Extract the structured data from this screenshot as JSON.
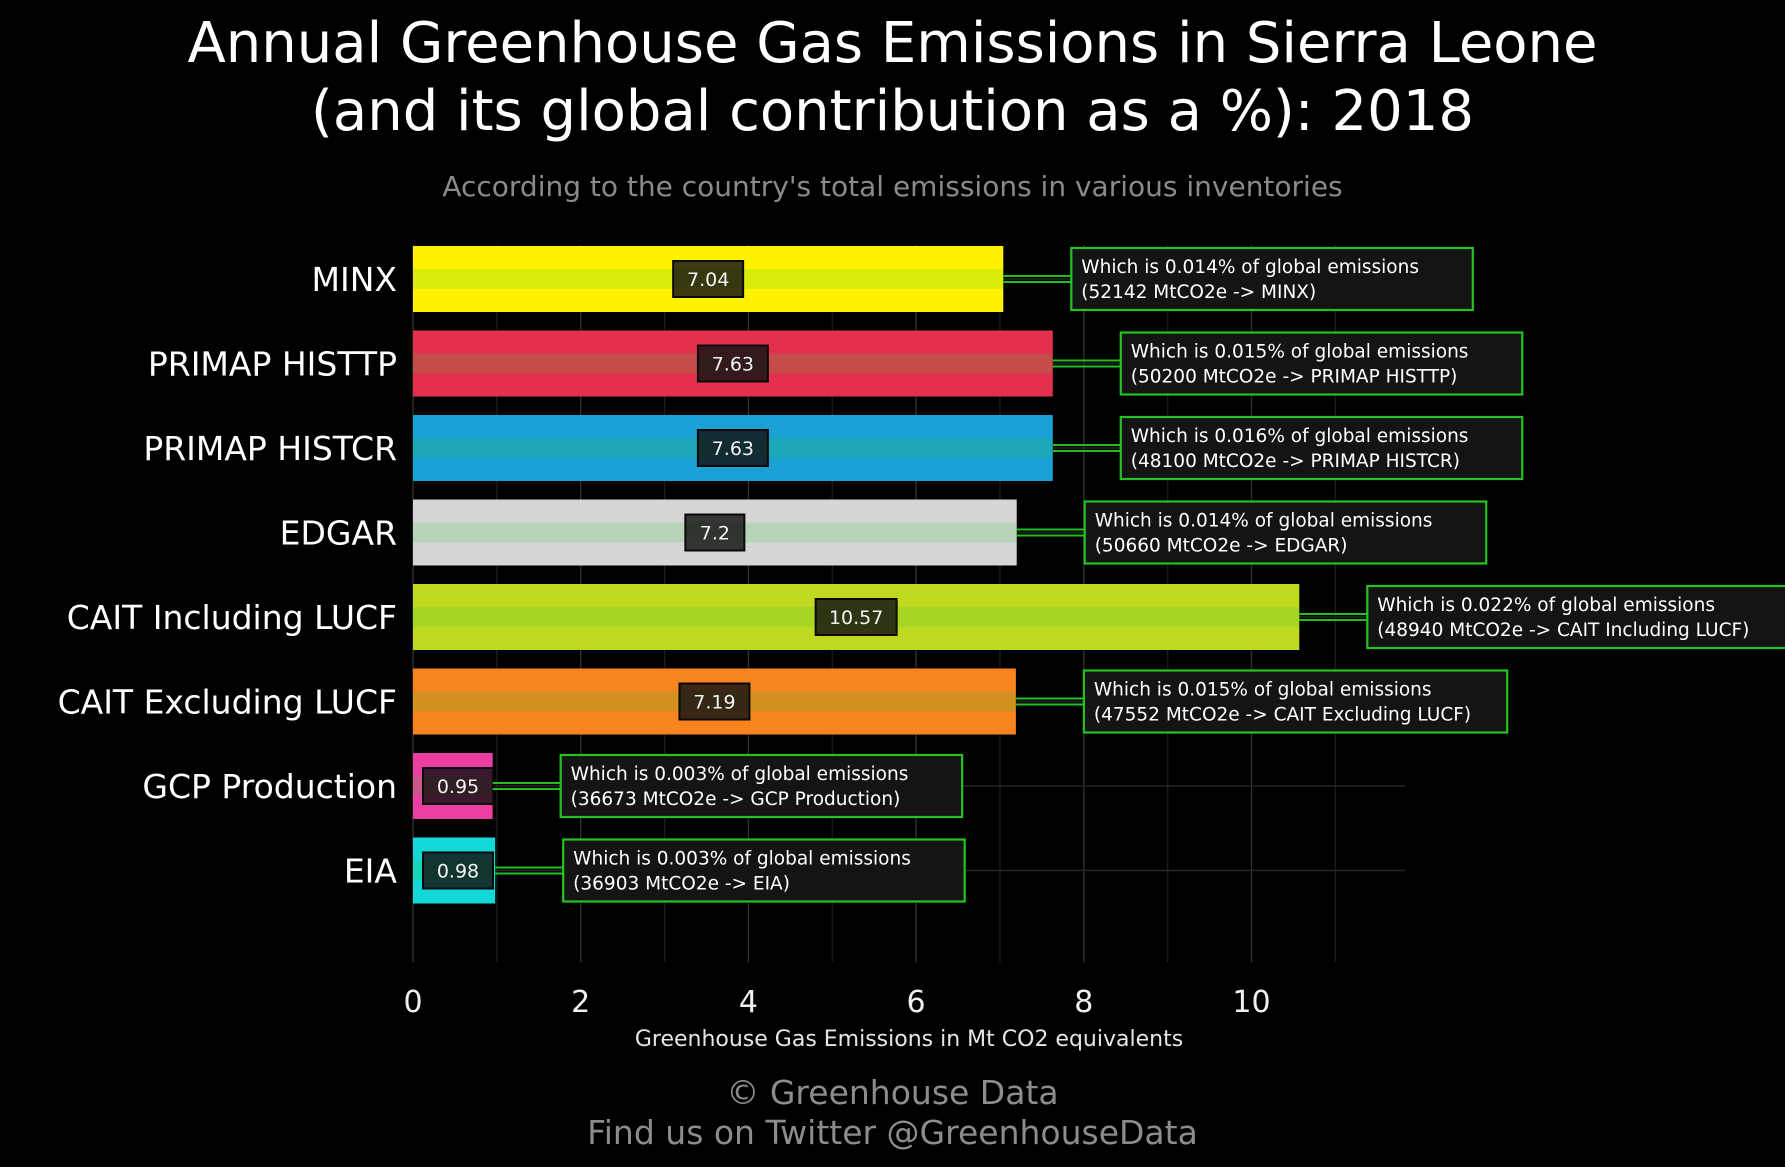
{
  "title_lines": [
    "Annual Greenhouse Gas Emissions in Sierra Leone",
    "(and its global contribution as a %): 2018"
  ],
  "subtitle": "According to the country's total emissions in various inventories",
  "footer": {
    "line1": "© Greenhouse Data",
    "line2": "Find us on Twitter @GreenhouseData"
  },
  "chart_data": {
    "type": "bar",
    "orientation": "horizontal",
    "title": "Annual Greenhouse Gas Emissions in Sierra Leone (and its global contribution as a %): 2018",
    "subtitle": "According to the country's total emissions in various inventories",
    "xlabel": "Greenhouse Gas Emissions in Mt CO2 equivalents",
    "ylabel": "",
    "xlim": [
      0,
      11.85
    ],
    "xticks": [
      0,
      2,
      4,
      6,
      8,
      10
    ],
    "grid": true,
    "categories": [
      "MINX",
      "PRIMAP HISTTP",
      "PRIMAP HISTCR",
      "EDGAR",
      "CAIT Including LUCF",
      "CAIT Excluding LUCF",
      "GCP Production",
      "EIA"
    ],
    "values": [
      7.04,
      7.63,
      7.63,
      7.2,
      10.57,
      7.19,
      0.95,
      0.98
    ],
    "value_labels": [
      "7.04",
      "7.63",
      "7.63",
      "7.2",
      "10.57",
      "7.19",
      "0.95",
      "0.98"
    ],
    "colors": [
      "#fff200",
      "#e4304f",
      "#1a9fd6",
      "#d6d6d6",
      "#c0d820",
      "#f7841f",
      "#ec3ea0",
      "#12d8d8"
    ],
    "annotations": [
      {
        "line1": "Which is 0.014% of global emissions",
        "line2": "(52142 MtCO2e -> MINX)"
      },
      {
        "line1": "Which is 0.015% of global emissions",
        "line2": "(50200 MtCO2e -> PRIMAP HISTTP)"
      },
      {
        "line1": "Which is 0.016% of global emissions",
        "line2": "(48100 MtCO2e -> PRIMAP HISTCR)"
      },
      {
        "line1": "Which is 0.014% of global emissions",
        "line2": "(50660 MtCO2e -> EDGAR)"
      },
      {
        "line1": "Which is 0.022% of global emissions",
        "line2": "(48940 MtCO2e -> CAIT Including LUCF)"
      },
      {
        "line1": "Which is 0.015% of global emissions",
        "line2": "(47552 MtCO2e -> CAIT Excluding LUCF)"
      },
      {
        "line1": "Which is 0.003% of global emissions",
        "line2": "(36673 MtCO2e -> GCP Production)"
      },
      {
        "line1": "Which is 0.003% of global emissions",
        "line2": "(36903 MtCO2e -> EIA)"
      }
    ],
    "annotation_border_color": "#22c322"
  }
}
